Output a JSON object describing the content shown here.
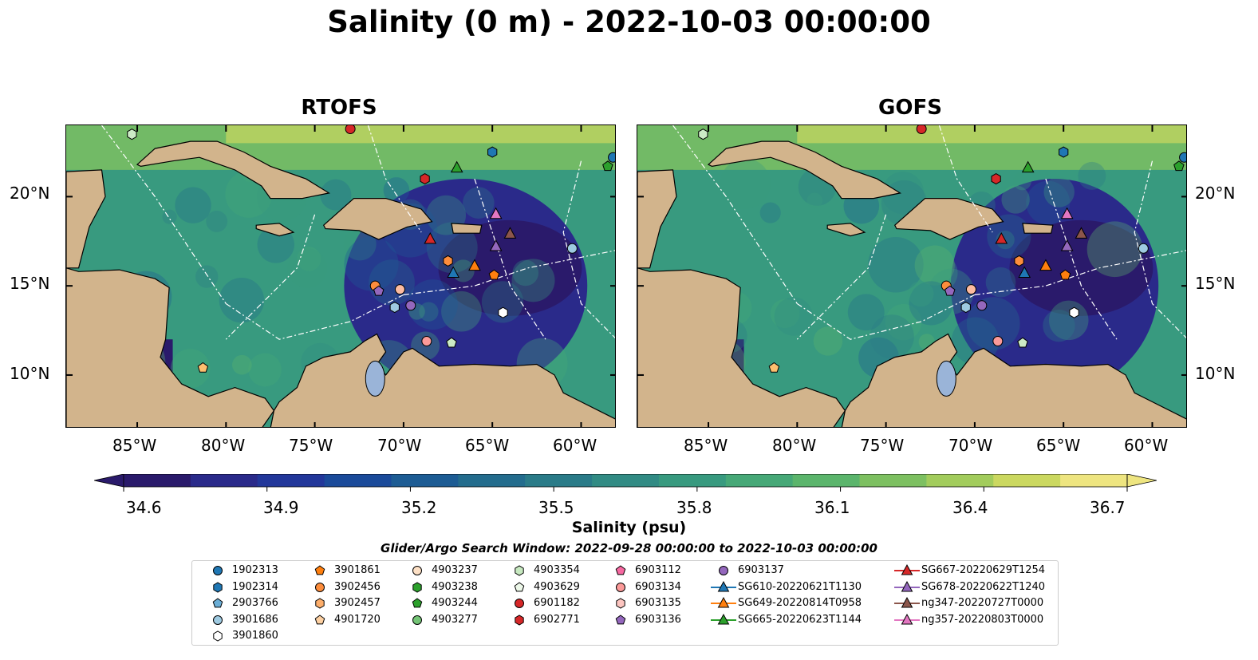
{
  "title": "Salinity (0 m) - 2022-10-03 00:00:00",
  "panels": [
    {
      "title": "RTOFS"
    },
    {
      "title": "GOFS"
    }
  ],
  "lat_labels": [
    "20°N",
    "15°N",
    "10°N"
  ],
  "lon_labels": [
    "85°W",
    "80°W",
    "75°W",
    "70°W",
    "65°W",
    "60°W"
  ],
  "colorbar": {
    "label": "Salinity (psu)",
    "ticks": [
      "34.6",
      "34.9",
      "35.2",
      "35.5",
      "35.8",
      "36.1",
      "36.4",
      "36.7"
    ],
    "range": [
      34.6,
      36.7
    ],
    "colors": [
      "#2a1a6b",
      "#2a2a8a",
      "#22379a",
      "#1a4a9a",
      "#1d5c94",
      "#236c8d",
      "#2a7b88",
      "#318b84",
      "#389a7f",
      "#46a877",
      "#5bb56c",
      "#7dc061",
      "#a2cc5c",
      "#cbd860",
      "#eee580"
    ]
  },
  "search_window": "Glider/Argo Search Window: 2022-09-28 00:00:00 to 2022-10-03 00:00:00",
  "legend": [
    [
      "1902313",
      "1902314",
      "2903766",
      "3901686",
      "3901860"
    ],
    [
      "3901861",
      "3902456",
      "3902457",
      "4901720"
    ],
    [
      "4903237",
      "4903238",
      "4903244",
      "4903277"
    ],
    [
      "4903354",
      "4903629",
      "6901182",
      "6902771"
    ],
    [
      "6903112",
      "6903134",
      "6903135",
      "6903136"
    ],
    [
      "6903137",
      "SG610-20220621T1130",
      "SG649-20220814T0958",
      "SG665-20220623T1144"
    ],
    [
      "SG667-20220629T1254",
      "SG678-20220622T1240",
      "ng347-20220727T0000",
      "ng357-20220803T0000"
    ]
  ]
}
